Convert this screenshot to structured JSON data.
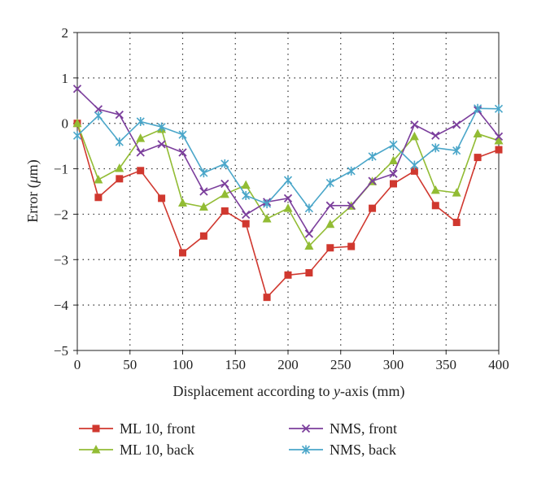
{
  "chart_data": {
    "type": "line",
    "xlabel": {
      "prefix": "Displacement according to ",
      "italic": "y",
      "suffix": "-axis (mm)"
    },
    "ylabel": {
      "prefix": "Error (",
      "italic": "μ",
      "suffix": "m)"
    },
    "xlim": [
      0,
      400
    ],
    "ylim": [
      -5,
      2
    ],
    "xticks": [
      0,
      50,
      100,
      150,
      200,
      250,
      300,
      350,
      400
    ],
    "yticks": [
      2,
      1,
      0,
      -1,
      -2,
      -3,
      -4,
      -5
    ],
    "xtick_labels": [
      "0",
      "50",
      "100",
      "150",
      "200",
      "250",
      "300",
      "350",
      "400"
    ],
    "ytick_labels": [
      "2",
      "1",
      "0",
      "−1",
      "−2",
      "−3",
      "−4",
      "−5"
    ],
    "grid": true,
    "legend_position": "bottom",
    "x": [
      0,
      20,
      40,
      60,
      80,
      100,
      120,
      140,
      160,
      180,
      200,
      220,
      240,
      260,
      280,
      300,
      320,
      340,
      360,
      380,
      400
    ],
    "series": [
      {
        "name": "ML 10, front",
        "color": "#d0382f",
        "marker": "square",
        "values": [
          0.0,
          -1.63,
          -1.22,
          -1.04,
          -1.65,
          -2.85,
          -2.48,
          -1.93,
          -2.21,
          -3.83,
          -3.34,
          -3.29,
          -2.74,
          -2.71,
          -1.87,
          -1.33,
          -1.05,
          -1.81,
          -2.18,
          -0.75,
          -0.58
        ]
      },
      {
        "name": "ML 10, back",
        "color": "#92bc34",
        "marker": "triangle",
        "values": [
          0.0,
          -1.24,
          -0.99,
          -0.33,
          -0.13,
          -1.75,
          -1.84,
          -1.56,
          -1.36,
          -2.1,
          -1.87,
          -2.7,
          -2.22,
          -1.82,
          -1.28,
          -0.82,
          -0.29,
          -1.47,
          -1.53,
          -0.23,
          -0.38
        ]
      },
      {
        "name": "NMS, front",
        "color": "#7b3e9c",
        "marker": "x",
        "values": [
          0.76,
          0.31,
          0.19,
          -0.64,
          -0.46,
          -0.64,
          -1.5,
          -1.33,
          -2.01,
          -1.73,
          -1.65,
          -2.43,
          -1.81,
          -1.81,
          -1.27,
          -1.11,
          -0.03,
          -0.27,
          -0.03,
          0.29,
          -0.29
        ]
      },
      {
        "name": "NMS, back",
        "color": "#4aa6c9",
        "marker": "asterisk",
        "values": [
          -0.27,
          0.17,
          -0.41,
          0.04,
          -0.08,
          -0.25,
          -1.09,
          -0.89,
          -1.59,
          -1.77,
          -1.25,
          -1.87,
          -1.31,
          -1.05,
          -0.73,
          -0.47,
          -0.92,
          -0.54,
          -0.6,
          0.33,
          0.32
        ]
      }
    ]
  }
}
